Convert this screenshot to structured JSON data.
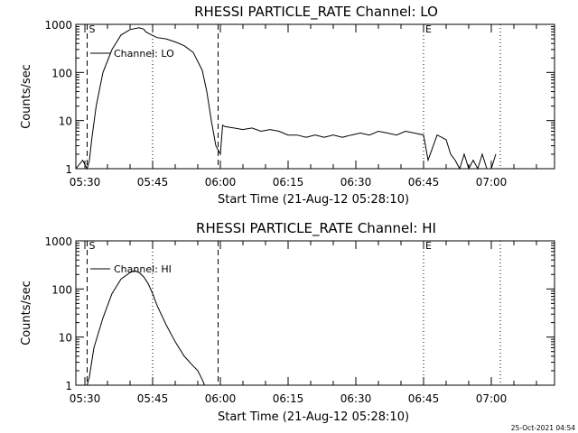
{
  "chart_data": [
    {
      "type": "line",
      "title": "RHESSI PARTICLE_RATE Channel: LO",
      "xlabel": "Start Time (21-Aug-12 05:28:10)",
      "ylabel": "Counts/sec",
      "yscale": "log",
      "ylim": [
        1,
        1000
      ],
      "xlim_minutes_after_0528": [
        0,
        106
      ],
      "x_tick_labels": [
        "05:30",
        "05:45",
        "06:00",
        "06:15",
        "06:30",
        "06:45",
        "07:00"
      ],
      "x_tick_minutes": [
        2,
        17,
        32,
        47,
        62,
        77,
        92
      ],
      "y_tick_labels": [
        "1",
        "10",
        "100",
        "1000"
      ],
      "y_tick_values": [
        1,
        10,
        100,
        1000
      ],
      "legend": "Channel: LO",
      "markers": [
        {
          "label": "S",
          "minute": 2.5,
          "style": "dashed"
        },
        {
          "label": "E",
          "minute": 77,
          "style": "dotted"
        },
        {
          "label": "",
          "minute": 17,
          "style": "dotted"
        },
        {
          "label": "",
          "minute": 31.5,
          "style": "dashed"
        },
        {
          "label": "",
          "minute": 94,
          "style": "dotted"
        }
      ],
      "series": [
        {
          "name": "Channel: LO",
          "x": [
            0,
            1.5,
            2.5,
            3.0,
            3.5,
            4.5,
            6,
            8,
            10,
            12,
            14,
            15,
            15.5,
            16.5,
            18,
            20,
            22,
            24,
            26,
            28,
            29,
            30,
            31,
            32,
            32.5,
            33,
            35,
            37,
            39,
            41,
            43,
            45,
            47,
            49,
            51,
            53,
            55,
            57,
            59,
            61,
            63,
            65,
            67,
            69,
            71,
            73,
            75,
            77,
            78,
            80,
            81,
            82,
            83,
            84,
            85,
            86,
            87,
            88,
            89,
            90,
            91,
            92,
            93
          ],
          "y": [
            1,
            1.5,
            1,
            1.5,
            4,
            20,
            100,
            300,
            600,
            780,
            850,
            800,
            700,
            620,
            530,
            500,
            430,
            360,
            260,
            110,
            40,
            10,
            3,
            2,
            8,
            7.5,
            7,
            6.5,
            7,
            6,
            6.5,
            6,
            5,
            5,
            4.5,
            5,
            4.5,
            5,
            4.5,
            5,
            5.5,
            5,
            6,
            5.5,
            5,
            6,
            5.5,
            5,
            1.5,
            5,
            4.5,
            4,
            2,
            1.5,
            1,
            2,
            1,
            1.5,
            1,
            2,
            1,
            1,
            2
          ]
        }
      ]
    },
    {
      "type": "line",
      "title": "RHESSI PARTICLE_RATE Channel: HI",
      "xlabel": "Start Time (21-Aug-12 05:28:10)",
      "ylabel": "Counts/sec",
      "yscale": "log",
      "ylim": [
        1,
        1000
      ],
      "xlim_minutes_after_0528": [
        0,
        106
      ],
      "x_tick_labels": [
        "05:30",
        "05:45",
        "06:00",
        "06:15",
        "06:30",
        "06:45",
        "07:00"
      ],
      "x_tick_minutes": [
        2,
        17,
        32,
        47,
        62,
        77,
        92
      ],
      "y_tick_labels": [
        "1",
        "10",
        "100",
        "1000"
      ],
      "y_tick_values": [
        1,
        10,
        100,
        1000
      ],
      "legend": "Channel: HI",
      "markers": [
        {
          "label": "S",
          "minute": 2.5,
          "style": "dashed"
        },
        {
          "label": "E",
          "minute": 77,
          "style": "dotted"
        },
        {
          "label": "",
          "minute": 17,
          "style": "dotted"
        },
        {
          "label": "",
          "minute": 31.5,
          "style": "dashed"
        },
        {
          "label": "",
          "minute": 94,
          "style": "dotted"
        }
      ],
      "series": [
        {
          "name": "Channel: HI",
          "x": [
            2.5,
            3.0,
            4,
            6,
            8,
            10,
            12,
            13,
            14,
            15,
            16,
            17,
            18,
            20,
            22,
            24,
            26,
            27,
            28,
            28.5
          ],
          "y": [
            1,
            1.5,
            6,
            25,
            80,
            160,
            220,
            240,
            220,
            180,
            130,
            80,
            45,
            18,
            8,
            4,
            2.5,
            2,
            1.3,
            1
          ]
        }
      ]
    }
  ],
  "footer": {
    "timestamp": "25-Oct-2021 04:54"
  }
}
